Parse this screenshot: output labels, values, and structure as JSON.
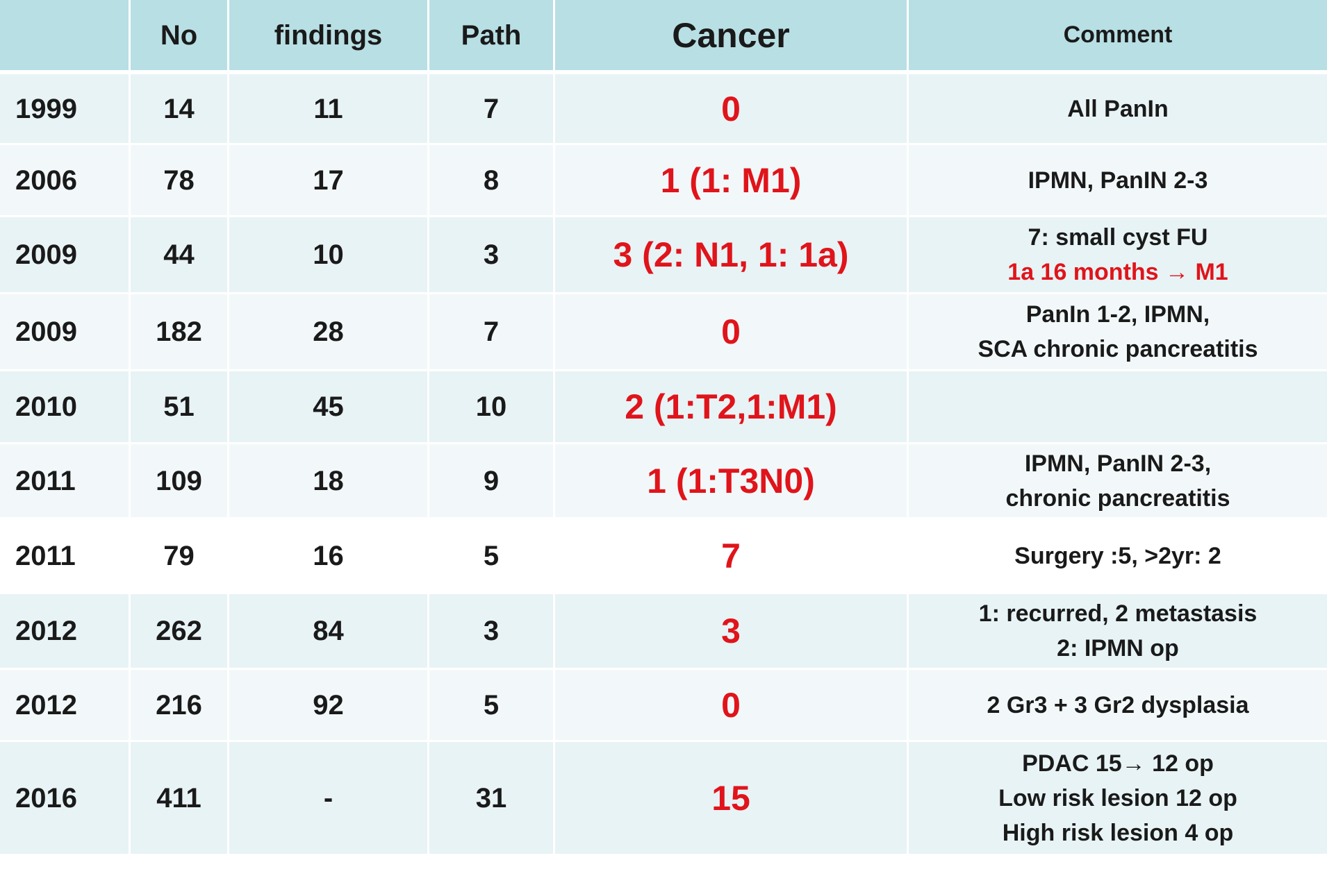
{
  "headers": {
    "year": "",
    "no": "No",
    "findings": "findings",
    "path": "Path",
    "cancer": "Cancer",
    "comment": "Comment"
  },
  "rows": [
    {
      "year": "1999",
      "no": "14",
      "findings": "11",
      "path": "7",
      "cancer": "0",
      "comment_lines": [
        "All PanIn"
      ]
    },
    {
      "year": "2006",
      "no": "78",
      "findings": "17",
      "path": "8",
      "cancer": "1 (1: M1)",
      "comment_lines": [
        "IPMN, PanIN 2-3"
      ]
    },
    {
      "year": "2009",
      "no": "44",
      "findings": "10",
      "path": "3",
      "cancer": "3 (2: N1, 1: 1a)",
      "comment_lines": [
        "7: small cyst FU",
        "1a 16 months → M1"
      ]
    },
    {
      "year": "2009",
      "no": "182",
      "findings": "28",
      "path": "7",
      "cancer": "0",
      "comment_lines": [
        "PanIn 1-2, IPMN,",
        "SCA chronic pancreatitis"
      ]
    },
    {
      "year": "2010",
      "no": "51",
      "findings": "45",
      "path": "10",
      "cancer": "2 (1:T2,1:M1)",
      "comment_lines": []
    },
    {
      "year": "2011",
      "no": "109",
      "findings": "18",
      "path": "9",
      "cancer": "1 (1:T3N0)",
      "comment_lines": [
        "IPMN, PanIN 2-3,",
        "chronic pancreatitis"
      ]
    },
    {
      "year": "2011",
      "no": "79",
      "findings": "16",
      "path": "5",
      "cancer": "7",
      "comment_lines": [
        "Surgery :5,  >2yr: 2"
      ]
    },
    {
      "year": "2012",
      "no": "262",
      "findings": "84",
      "path": "3",
      "cancer": "3",
      "comment_lines": [
        "1: recurred, 2 metastasis",
        "2: IPMN op"
      ]
    },
    {
      "year": "2012",
      "no": "216",
      "findings": "92",
      "path": "5",
      "cancer": "0",
      "comment_lines": [
        "2 Gr3 + 3 Gr2 dysplasia"
      ]
    },
    {
      "year": "2016",
      "no": "411",
      "findings": "-",
      "path": "31",
      "cancer": "15",
      "comment_lines": [
        "PDAC 15→ 12 op",
        "Low risk lesion 12 op",
        "High risk lesion 4 op"
      ]
    }
  ],
  "colors": {
    "header_bg": "#b8dfe4",
    "row_odd_bg": "#e8f3f5",
    "row_even_bg": "#f2f8f9",
    "accent_red": "#e0141b"
  }
}
